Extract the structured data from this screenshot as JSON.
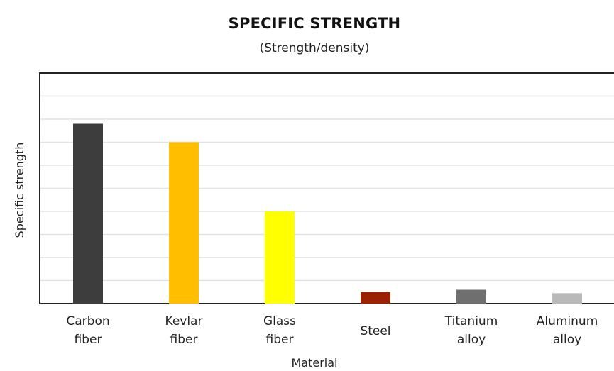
{
  "chart_data": {
    "type": "bar",
    "title": "SPECIFIC STRENGTH",
    "subtitle": "(Strength/density)",
    "xlabel": "Material",
    "ylabel": "Specific strength",
    "categories": [
      [
        "Carbon",
        "fiber"
      ],
      [
        "Kevlar",
        "fiber"
      ],
      [
        "Glass",
        "fiber"
      ],
      [
        "Steel"
      ],
      [
        "Titanium",
        "alloy"
      ],
      [
        "Aluminum",
        "alloy"
      ]
    ],
    "values": [
      7.8,
      7.0,
      4.0,
      0.5,
      0.6,
      0.45
    ],
    "colors": [
      "#3d3d3d",
      "#ffbf00",
      "#ffff00",
      "#9b2200",
      "#6f6f6f",
      "#b9b9b9"
    ],
    "ylim": [
      0,
      10
    ],
    "grid": true,
    "ytick_labels_shown": false
  }
}
